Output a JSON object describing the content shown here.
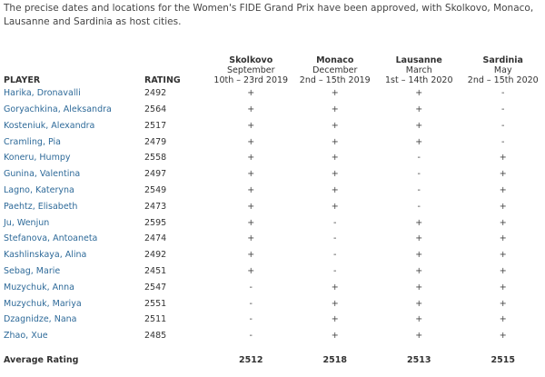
{
  "intro": "The precise dates and locations for the Women's FIDE Grand Prix have been approved, with Skolkovo, Monaco, Lausanne and Sardinia as host cities.",
  "headers": {
    "player": "PLAYER",
    "rating": "RATING"
  },
  "events": [
    {
      "venue": "Skolkovo",
      "month": "September",
      "dates": "10th – 23rd 2019"
    },
    {
      "venue": "Monaco",
      "month": "December",
      "dates": "2nd – 15th 2019"
    },
    {
      "venue": "Lausanne",
      "month": "March",
      "dates": "1st – 14th 2020"
    },
    {
      "venue": "Sardinia",
      "month": "May",
      "dates": "2nd – 15th 2020"
    }
  ],
  "players": [
    {
      "name": "Harika, Dronavalli",
      "rating": "2492",
      "marks": [
        "+",
        "+",
        "+",
        "-"
      ]
    },
    {
      "name": "Goryachkina, Aleksandra",
      "rating": "2564",
      "marks": [
        "+",
        "+",
        "+",
        "-"
      ]
    },
    {
      "name": "Kosteniuk, Alexandra",
      "rating": "2517",
      "marks": [
        "+",
        "+",
        "+",
        "-"
      ]
    },
    {
      "name": "Cramling, Pia",
      "rating": "2479",
      "marks": [
        "+",
        "+",
        "+",
        "-"
      ]
    },
    {
      "name": "Koneru, Humpy",
      "rating": "2558",
      "marks": [
        "+",
        "+",
        "-",
        "+"
      ]
    },
    {
      "name": "Gunina, Valentina",
      "rating": "2497",
      "marks": [
        "+",
        "+",
        "-",
        "+"
      ]
    },
    {
      "name": "Lagno, Kateryna",
      "rating": "2549",
      "marks": [
        "+",
        "+",
        "-",
        "+"
      ]
    },
    {
      "name": "Paehtz, Elisabeth",
      "rating": "2473",
      "marks": [
        "+",
        "+",
        "-",
        "+"
      ]
    },
    {
      "name": "Ju, Wenjun",
      "rating": "2595",
      "marks": [
        "+",
        "-",
        "+",
        "+"
      ]
    },
    {
      "name": "Stefanova, Antoaneta",
      "rating": "2474",
      "marks": [
        "+",
        "-",
        "+",
        "+"
      ]
    },
    {
      "name": "Kashlinskaya, Alina",
      "rating": "2492",
      "marks": [
        "+",
        "-",
        "+",
        "+"
      ]
    },
    {
      "name": "Sebag, Marie",
      "rating": "2451",
      "marks": [
        "+",
        "-",
        "+",
        "+"
      ]
    },
    {
      "name": "Muzychuk, Anna",
      "rating": "2547",
      "marks": [
        "-",
        "+",
        "+",
        "+"
      ]
    },
    {
      "name": "Muzychuk, Mariya",
      "rating": "2551",
      "marks": [
        "-",
        "+",
        "+",
        "+"
      ]
    },
    {
      "name": "Dzagnidze, Nana",
      "rating": "2511",
      "marks": [
        "-",
        "+",
        "+",
        "+"
      ]
    },
    {
      "name": "Zhao, Xue",
      "rating": "2485",
      "marks": [
        "-",
        "+",
        "+",
        "+"
      ]
    }
  ],
  "average": {
    "label": "Average Rating",
    "values": [
      "2512",
      "2518",
      "2513",
      "2515"
    ]
  }
}
